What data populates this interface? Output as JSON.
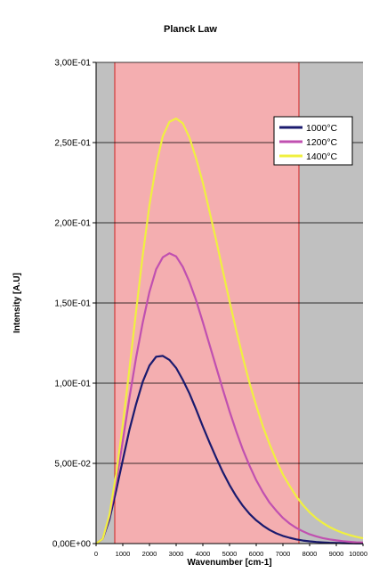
{
  "chart_data": {
    "type": "line",
    "title": "Planck Law",
    "xlabel": "Wavenumber [cm-1]",
    "ylabel": "Intensity [A.U]",
    "xlim": [
      0,
      10000
    ],
    "ylim": [
      0,
      0.3
    ],
    "x_ticks": [
      "0",
      "1000",
      "2000",
      "3000",
      "4000",
      "5000",
      "6000",
      "7000",
      "8000",
      "9000",
      "10000"
    ],
    "y_ticks": [
      "0,00E+00",
      "5,00E-02",
      "1,00E-01",
      "1,50E-01",
      "2,00E-01",
      "2,50E-01",
      "3,00E-01"
    ],
    "grid": "horizontal",
    "legend_position": "top-right",
    "highlight_band": {
      "x_start": 700,
      "x_end": 7600,
      "color": "#f4aeb0"
    },
    "background_color": "#c0c0c0",
    "x": [
      0,
      250,
      500,
      750,
      1000,
      1250,
      1500,
      1750,
      2000,
      2250,
      2500,
      2750,
      3000,
      3250,
      3500,
      3750,
      4000,
      4250,
      4500,
      4750,
      5000,
      5250,
      5500,
      5750,
      6000,
      6250,
      6500,
      6750,
      7000,
      7250,
      7500,
      7750,
      8000,
      8250,
      8500,
      8750,
      9000,
      9250,
      9500,
      9750,
      10000
    ],
    "series": [
      {
        "name": "1000°C",
        "color": "#1a1a6e",
        "values": [
          0,
          0.003,
          0.015,
          0.033,
          0.052,
          0.071,
          0.087,
          0.101,
          0.111,
          0.1165,
          0.117,
          0.1145,
          0.1095,
          0.102,
          0.0935,
          0.0835,
          0.073,
          0.063,
          0.0535,
          0.0445,
          0.0365,
          0.0295,
          0.0235,
          0.0185,
          0.0145,
          0.0112,
          0.0085,
          0.0064,
          0.0048,
          0.0036,
          0.0026,
          0.0019,
          0.0014,
          0.001,
          0.0007,
          0.0005,
          0.0004,
          0.0003,
          0.0002,
          0.0001,
          0.0001
        ]
      },
      {
        "name": "1200°C",
        "color": "#c050b0",
        "values": [
          0,
          0.003,
          0.017,
          0.038,
          0.064,
          0.091,
          0.116,
          0.138,
          0.157,
          0.171,
          0.1785,
          0.181,
          0.179,
          0.1725,
          0.163,
          0.1515,
          0.138,
          0.124,
          0.11,
          0.096,
          0.0825,
          0.07,
          0.0585,
          0.0485,
          0.0395,
          0.032,
          0.0255,
          0.0205,
          0.016,
          0.0125,
          0.0098,
          0.0076,
          0.0058,
          0.0045,
          0.0034,
          0.0026,
          0.002,
          0.0015,
          0.0011,
          0.0008,
          0.0006
        ]
      },
      {
        "name": "1400°C",
        "color": "#f0f040",
        "values": [
          0,
          0.003,
          0.018,
          0.043,
          0.074,
          0.109,
          0.145,
          0.18,
          0.211,
          0.236,
          0.254,
          0.263,
          0.265,
          0.262,
          0.253,
          0.24,
          0.225,
          0.207,
          0.189,
          0.17,
          0.151,
          0.133,
          0.116,
          0.1,
          0.086,
          0.073,
          0.062,
          0.052,
          0.043,
          0.036,
          0.0295,
          0.024,
          0.0195,
          0.0158,
          0.0128,
          0.0103,
          0.0083,
          0.0066,
          0.0053,
          0.0042,
          0.0033
        ]
      }
    ]
  }
}
